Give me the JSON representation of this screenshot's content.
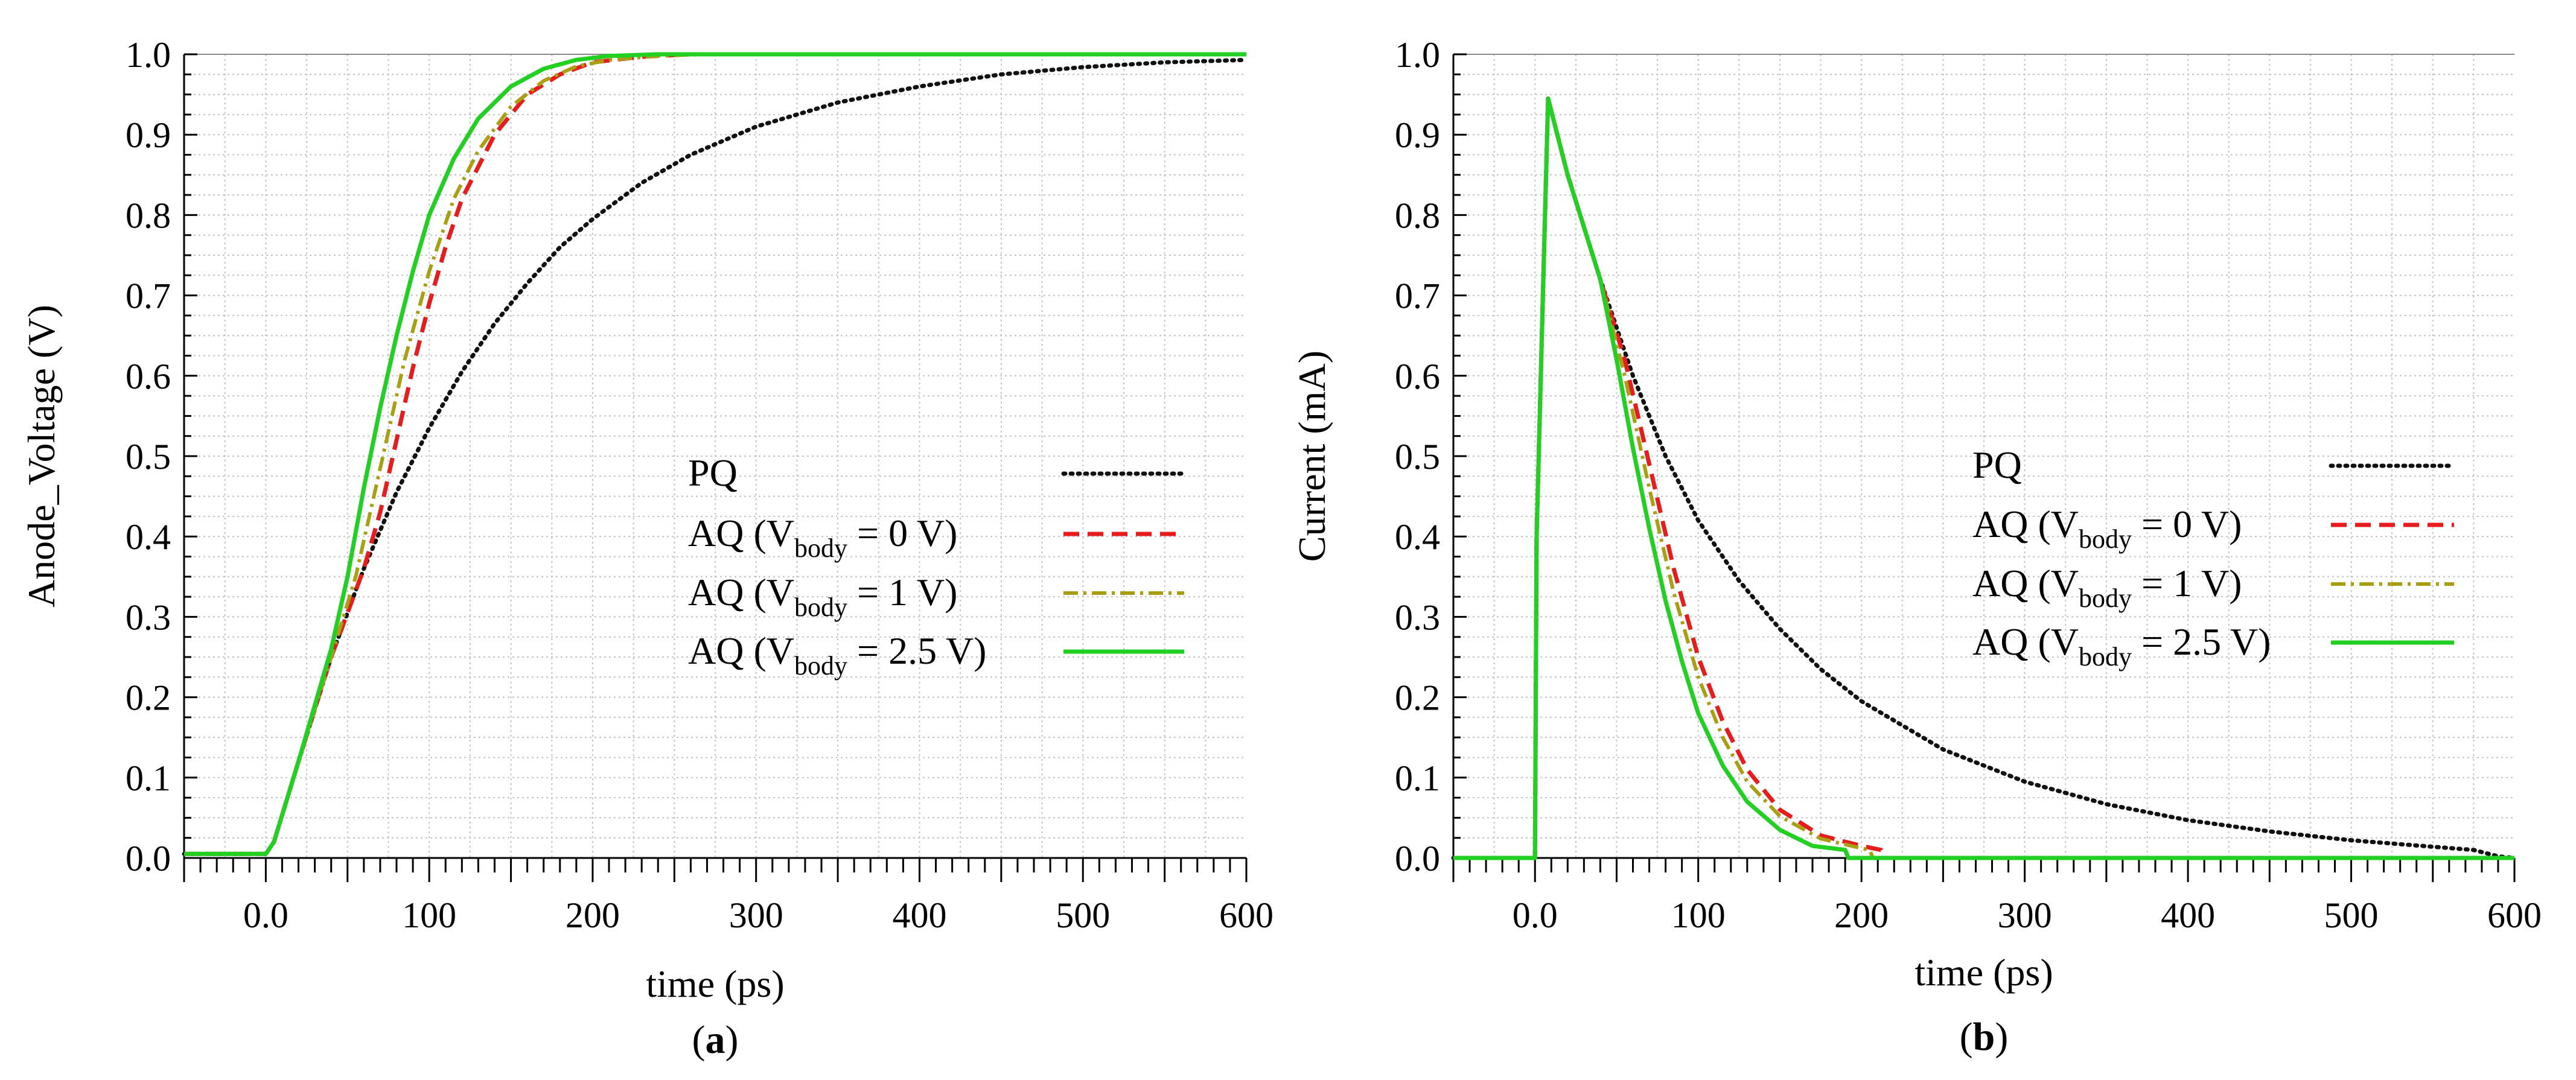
{
  "colors": {
    "PQ": "#111111",
    "AQ0": "#e81c1c",
    "AQ1": "#a8a012",
    "AQ25": "#22d022",
    "grid": "#c4c4c4"
  },
  "legend": [
    {
      "key": "PQ",
      "label": "PQ",
      "sub": "",
      "suffix": "",
      "dash": "3 9",
      "width": 7
    },
    {
      "key": "AQ0",
      "label": "AQ (V",
      "sub": "body",
      "suffix": " = 0 V)",
      "dash": "26 14",
      "width": 7
    },
    {
      "key": "AQ1",
      "label": "AQ (V",
      "sub": "body",
      "suffix": " = 1 V)",
      "dash": "24 9 5 9",
      "width": 6
    },
    {
      "key": "AQ25",
      "label": "AQ (V",
      "sub": "body",
      "suffix": " = 2.5 V)",
      "dash": "",
      "width": 7
    }
  ],
  "chart_data": [
    {
      "type": "line",
      "panel": "a",
      "caption_open": "(",
      "caption_letter": "a",
      "caption_close": ")",
      "xlabel": "time (ps)",
      "ylabel": "Anode_Voltage (V)",
      "xlim": [
        -50,
        600
      ],
      "ylim": [
        0,
        1.0
      ],
      "xticks": [
        0,
        100,
        200,
        300,
        400,
        500,
        600
      ],
      "xtick_labels": [
        "0.0",
        "100",
        "200",
        "300",
        "400",
        "500",
        "600"
      ],
      "yticks": [
        0,
        0.1,
        0.2,
        0.3,
        0.4,
        0.5,
        0.6,
        0.7,
        0.8,
        0.9,
        1.0
      ],
      "ytick_labels": [
        "0.0",
        "0.1",
        "0.2",
        "0.3",
        "0.4",
        "0.5",
        "0.6",
        "0.7",
        "0.8",
        "0.9",
        "1.0"
      ],
      "legend_position": "center-right",
      "series": [
        {
          "name": "PQ",
          "key": "PQ",
          "x": [
            -50,
            0,
            5,
            20,
            40,
            60,
            80,
            100,
            120,
            140,
            160,
            180,
            200,
            230,
            260,
            300,
            350,
            400,
            450,
            500,
            550,
            600
          ],
          "y": [
            0.005,
            0.005,
            0.02,
            0.12,
            0.25,
            0.36,
            0.455,
            0.535,
            0.605,
            0.665,
            0.715,
            0.76,
            0.795,
            0.84,
            0.875,
            0.91,
            0.94,
            0.96,
            0.975,
            0.984,
            0.99,
            0.993
          ]
        },
        {
          "name": "AQ (Vbody = 0 V)",
          "key": "AQ0",
          "x": [
            -50,
            0,
            5,
            20,
            40,
            60,
            70,
            80,
            90,
            100,
            110,
            120,
            140,
            160,
            180,
            200,
            230,
            260,
            300,
            600
          ],
          "y": [
            0.005,
            0.005,
            0.02,
            0.12,
            0.25,
            0.36,
            0.43,
            0.52,
            0.61,
            0.69,
            0.76,
            0.82,
            0.9,
            0.95,
            0.975,
            0.99,
            0.997,
            1.0,
            1.0,
            1.0
          ]
        },
        {
          "name": "AQ (Vbody = 1 V)",
          "key": "AQ1",
          "x": [
            -50,
            0,
            5,
            20,
            40,
            55,
            65,
            75,
            85,
            100,
            115,
            130,
            150,
            170,
            190,
            210,
            240,
            270,
            600
          ],
          "y": [
            0.005,
            0.005,
            0.02,
            0.12,
            0.25,
            0.35,
            0.44,
            0.53,
            0.62,
            0.73,
            0.82,
            0.88,
            0.935,
            0.967,
            0.985,
            0.993,
            0.998,
            1.0,
            1.0
          ]
        },
        {
          "name": "AQ (Vbody = 2.5 V)",
          "key": "AQ25",
          "x": [
            -50,
            0,
            5,
            20,
            40,
            50,
            60,
            70,
            80,
            90,
            100,
            115,
            130,
            150,
            170,
            190,
            210,
            240,
            600
          ],
          "y": [
            0.005,
            0.005,
            0.02,
            0.12,
            0.26,
            0.35,
            0.46,
            0.56,
            0.65,
            0.73,
            0.8,
            0.87,
            0.92,
            0.96,
            0.982,
            0.993,
            0.998,
            1.0,
            1.0
          ]
        }
      ]
    },
    {
      "type": "line",
      "panel": "b",
      "caption_open": "(",
      "caption_letter": "b",
      "caption_close": ")",
      "xlabel": "time (ps)",
      "ylabel": "Current (mA)",
      "xlim": [
        -50,
        600
      ],
      "ylim": [
        0,
        1.0
      ],
      "xticks": [
        0,
        100,
        200,
        300,
        400,
        500,
        600
      ],
      "xtick_labels": [
        "0.0",
        "100",
        "200",
        "300",
        "400",
        "500",
        "600"
      ],
      "yticks": [
        0,
        0.1,
        0.2,
        0.3,
        0.4,
        0.5,
        0.6,
        0.7,
        0.8,
        0.9,
        1.0
      ],
      "ytick_labels": [
        "0.0",
        "0.1",
        "0.2",
        "0.3",
        "0.4",
        "0.5",
        "0.6",
        "0.7",
        "0.8",
        "0.9",
        "1.0"
      ],
      "legend_position": "center-right",
      "series": [
        {
          "name": "PQ",
          "key": "PQ",
          "x": [
            -50,
            0,
            1,
            8,
            20,
            40,
            60,
            80,
            100,
            125,
            150,
            175,
            200,
            250,
            300,
            350,
            400,
            450,
            500,
            550,
            575,
            590,
            600
          ],
          "y": [
            0,
            0,
            0.4,
            0.945,
            0.85,
            0.72,
            0.6,
            0.5,
            0.42,
            0.345,
            0.285,
            0.235,
            0.195,
            0.135,
            0.095,
            0.067,
            0.047,
            0.033,
            0.022,
            0.014,
            0.01,
            0.002,
            0
          ]
        },
        {
          "name": "AQ (Vbody = 0 V)",
          "key": "AQ0",
          "x": [
            -50,
            0,
            1,
            8,
            20,
            40,
            55,
            70,
            85,
            100,
            115,
            130,
            150,
            175,
            200,
            212,
            214,
            600
          ],
          "y": [
            0,
            0,
            0.4,
            0.945,
            0.85,
            0.72,
            0.62,
            0.49,
            0.36,
            0.25,
            0.17,
            0.11,
            0.06,
            0.028,
            0.015,
            0.01,
            0,
            0
          ]
        },
        {
          "name": "AQ (Vbody = 1 V)",
          "key": "AQ1",
          "x": [
            -50,
            0,
            1,
            8,
            20,
            40,
            55,
            70,
            85,
            100,
            115,
            130,
            150,
            175,
            200,
            205,
            207,
            600
          ],
          "y": [
            0,
            0,
            0.4,
            0.945,
            0.85,
            0.72,
            0.6,
            0.46,
            0.33,
            0.225,
            0.15,
            0.095,
            0.052,
            0.024,
            0.012,
            0.01,
            0,
            0
          ]
        },
        {
          "name": "AQ (Vbody = 2.5 V)",
          "key": "AQ25",
          "x": [
            -50,
            0,
            1,
            8,
            20,
            40,
            50,
            60,
            70,
            80,
            90,
            100,
            115,
            130,
            150,
            170,
            190,
            192,
            600
          ],
          "y": [
            0,
            0,
            0.4,
            0.945,
            0.85,
            0.72,
            0.62,
            0.51,
            0.41,
            0.32,
            0.245,
            0.18,
            0.115,
            0.07,
            0.035,
            0.015,
            0.01,
            0,
            0
          ]
        }
      ]
    }
  ]
}
